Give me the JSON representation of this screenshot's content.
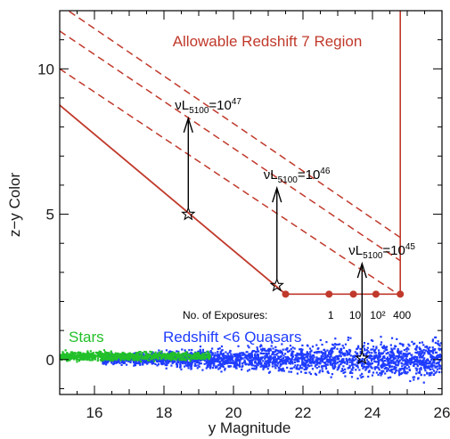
{
  "chart_data": {
    "type": "scatter",
    "xlabel": "y Magnitude",
    "ylabel": "z−y Color",
    "xlim": [
      15,
      26
    ],
    "ylim": [
      -1.2,
      12
    ],
    "xticks": [
      16,
      18,
      20,
      22,
      24,
      26
    ],
    "yticks": [
      0,
      5,
      10
    ],
    "grid": false,
    "region_label": "Allowable Redshift 7 Region",
    "region": {
      "boundary_line": [
        [
          15.0,
          8.75
        ],
        [
          21.5,
          2.25
        ]
      ],
      "floor_y": 2.25,
      "floor_x": [
        21.5,
        24.8
      ],
      "right_edge_x": 24.8,
      "dashed_lines": [
        [
          [
            15.0,
            10.0
          ],
          [
            24.8,
            2.2
          ]
        ],
        [
          [
            15.0,
            11.3
          ],
          [
            24.8,
            3.4
          ]
        ],
        [
          [
            15.0,
            12.2
          ],
          [
            24.8,
            4.2
          ]
        ]
      ]
    },
    "exposures": {
      "label": "No. of Exposures:",
      "points": [
        {
          "x": 21.5,
          "label": ""
        },
        {
          "x": 22.75,
          "label": "1"
        },
        {
          "x": 23.45,
          "label": "10"
        },
        {
          "x": 24.1,
          "label": "10²"
        },
        {
          "x": 24.8,
          "label": "400"
        }
      ]
    },
    "luminosity_tracks": [
      {
        "prefix": "νL",
        "subscript": "5100",
        "base": "=10",
        "exponent": "47",
        "x": 18.7,
        "star_y": 5.0,
        "arrow_to_y": 8.3
      },
      {
        "prefix": "νL",
        "subscript": "5100",
        "base": "=10",
        "exponent": "46",
        "x": 21.25,
        "star_y": 2.55,
        "arrow_to_y": 5.9
      },
      {
        "prefix": "νL",
        "subscript": "5100",
        "base": "=10",
        "exponent": "45",
        "x": 23.7,
        "star_y": 0.05,
        "arrow_to_y": 3.3
      }
    ],
    "series": [
      {
        "name": "Stars",
        "color": "#22c02a",
        "x_range": [
          15.0,
          19.3
        ],
        "y_center": 0.15
      },
      {
        "name": "Redshift <6 Quasars",
        "color": "#1f3cff",
        "x_range": [
          16.2,
          26.0
        ],
        "y_center": 0.05
      }
    ],
    "colors": {
      "region": "#c0392b",
      "stars": "#22c02a",
      "quasars": "#1f3cff",
      "arrow": "#000000"
    }
  }
}
